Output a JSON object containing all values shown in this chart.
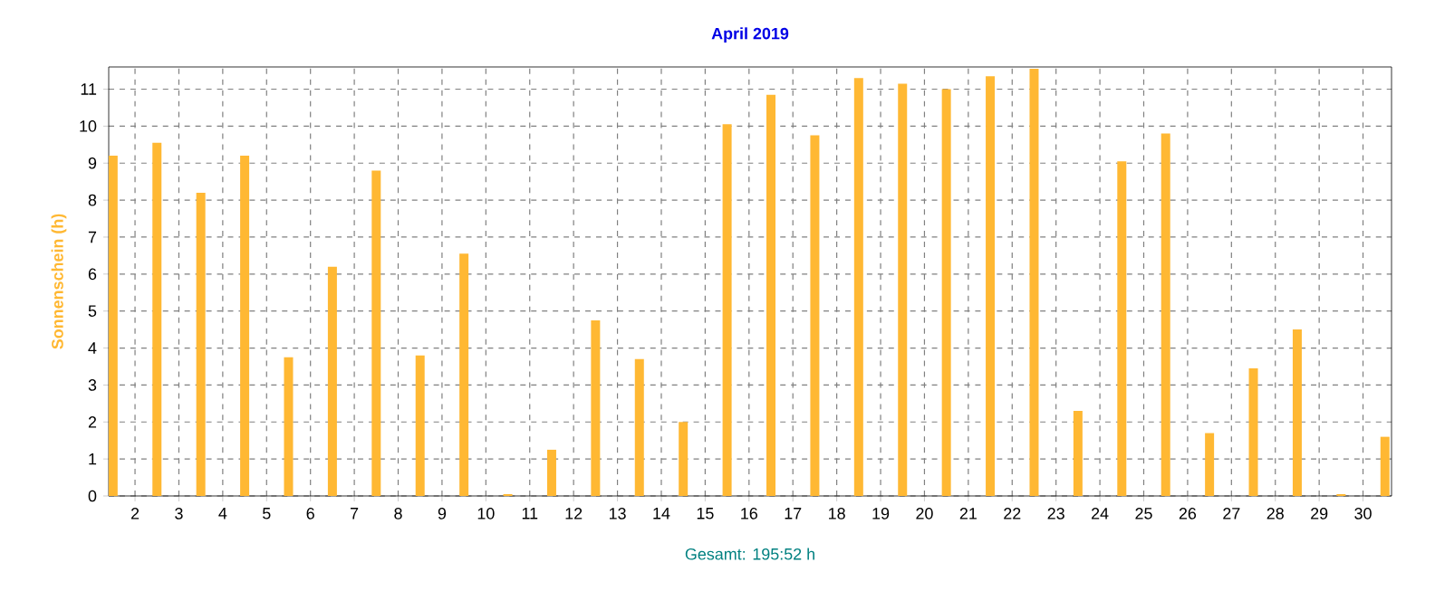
{
  "chart_data": {
    "type": "bar",
    "title": "April 2019",
    "ylabel": "Sonnenschein  (h)",
    "annotations": [
      "Gesamt: 195:52 h"
    ],
    "x": [
      1.5,
      2.5,
      3.5,
      4.5,
      5.5,
      6.5,
      7.5,
      8.5,
      9.5,
      10.5,
      11.5,
      12.5,
      13.5,
      14.5,
      15.5,
      16.5,
      17.5,
      18.5,
      19.5,
      20.5,
      21.5,
      22.5,
      23.5,
      24.5,
      25.5,
      26.5,
      27.5,
      28.5,
      29.5,
      30.5
    ],
    "values": [
      9.2,
      9.55,
      8.2,
      9.2,
      3.75,
      6.2,
      8.8,
      3.8,
      6.55,
      0.05,
      1.25,
      4.75,
      3.7,
      2.0,
      10.05,
      10.85,
      9.75,
      11.3,
      11.15,
      11.0,
      11.35,
      11.55,
      2.3,
      9.05,
      9.8,
      1.7,
      3.45,
      4.5,
      0.05,
      1.6
    ],
    "color": "#ffb833",
    "xlim": [
      1.4,
      30.65
    ],
    "ylim": [
      0,
      11.6
    ],
    "xticks": [
      2,
      3,
      4,
      5,
      6,
      7,
      8,
      9,
      10,
      11,
      12,
      13,
      14,
      15,
      16,
      17,
      18,
      19,
      20,
      21,
      22,
      23,
      24,
      25,
      26,
      27,
      28,
      29,
      30
    ],
    "yticks": [
      0,
      1,
      2,
      3,
      4,
      5,
      6,
      7,
      8,
      9,
      10,
      11
    ],
    "grid": true
  }
}
